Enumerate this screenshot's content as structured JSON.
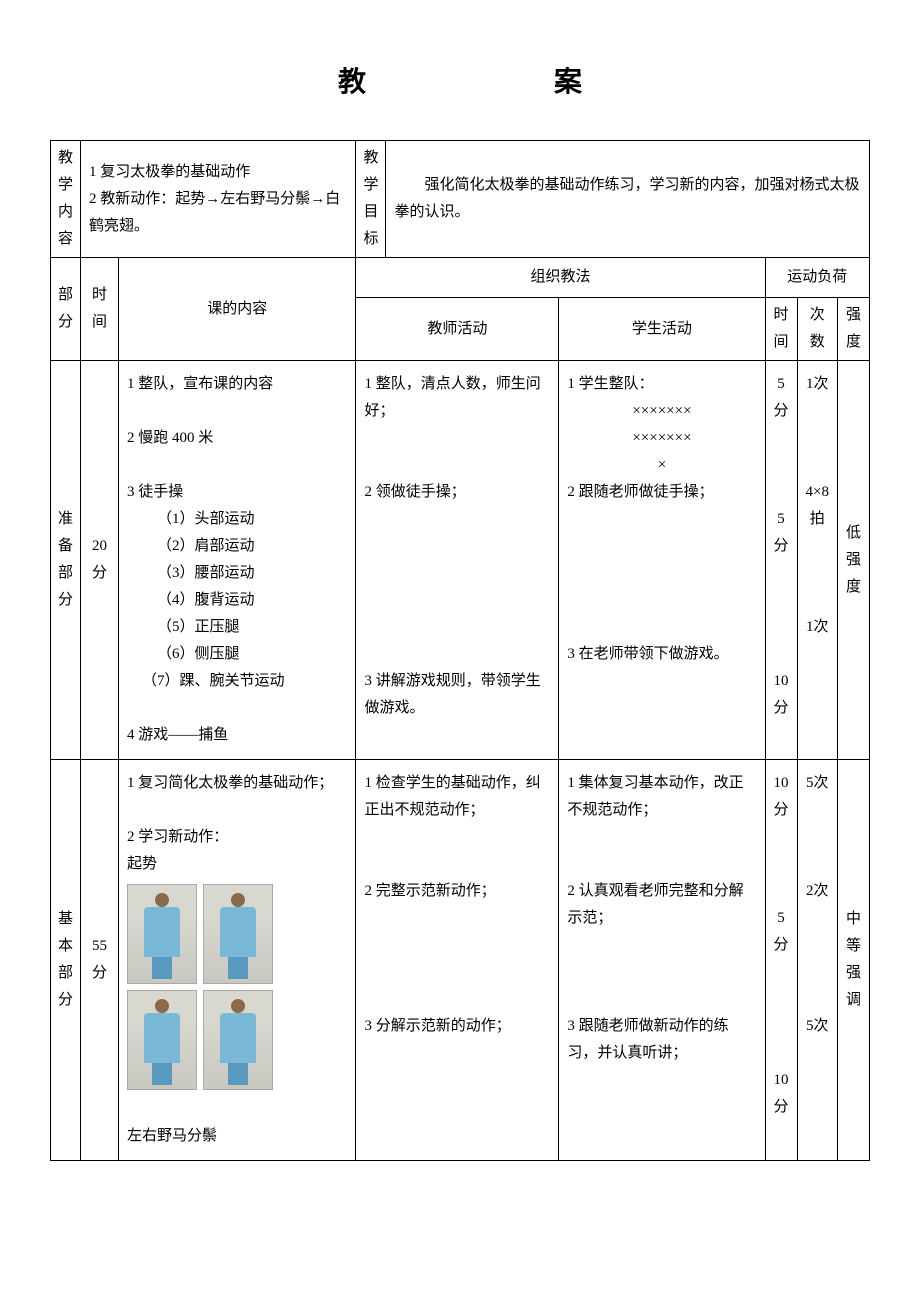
{
  "title": "教　案",
  "header": {
    "content_label": "教学内容",
    "content_text": "1 复习太极拳的基础动作\n2 教新动作：起势→左右野马分鬃→白鹤亮翅。",
    "goal_label": "教学目标",
    "goal_text": "　　强化简化太极拳的基础动作练习，学习新的内容，加强对杨式太极拳的认识。"
  },
  "cols": {
    "part": "部分",
    "time": "时间",
    "lesson": "课的内容",
    "method": "组织教法",
    "teacher": "教师活动",
    "student": "学生活动",
    "load": "运动负荷",
    "load_time": "时间",
    "load_count": "次数",
    "load_intensity": "强度"
  },
  "prep": {
    "label": "准备部分",
    "time": "20分",
    "lesson_1": "1 整队，宣布课的内容",
    "lesson_2": "2 慢跑 400 米",
    "lesson_3": "3 徒手操",
    "ex1": "（1）头部运动",
    "ex2": "（2）肩部运动",
    "ex3": "（3）腰部运动",
    "ex4": "（4）腹背运动",
    "ex5": "（5）正压腿",
    "ex6": "（6）侧压腿",
    "ex7": "（7）踝、腕关节运动",
    "lesson_4": "4 游戏——捕鱼",
    "teacher_1": "1 整队，清点人数，师生问好；",
    "teacher_2": "2 领做徒手操；",
    "teacher_3": "3 讲解游戏规则，带领学生做游戏。",
    "student_1": "1 学生整队：",
    "student_x1": "×××××××",
    "student_x2": "×××××××",
    "student_x3": "×",
    "student_2": "2 跟随老师做徒手操；",
    "student_3": "3 在老师带领下做游戏。",
    "t1": "5分",
    "c1": "1次",
    "t2": "5分",
    "c2": "4×8拍",
    "t3": "10分",
    "c3": "1次",
    "intensity": "低强度"
  },
  "main": {
    "label": "基本部分",
    "time": "55分",
    "lesson_1": "1 复习简化太极拳的基础动作；",
    "lesson_2": "2 学习新动作：",
    "lesson_2b": "起势",
    "lesson_3": "左右野马分鬃",
    "teacher_1": "1 检查学生的基础动作，纠正出不规范动作；",
    "teacher_2": "2 完整示范新动作；",
    "teacher_3": "3 分解示范新的动作；",
    "student_1": "1 集体复习基本动作，改正不规范动作；",
    "student_2": "2 认真观看老师完整和分解示范；",
    "student_3": "3 跟随老师做新动作的练习，并认真听讲；",
    "t1": "10分",
    "c1": "5次",
    "t2": "5分",
    "c2": "2次",
    "t3": "10分",
    "c3": "5次",
    "intensity": "中等强调"
  }
}
